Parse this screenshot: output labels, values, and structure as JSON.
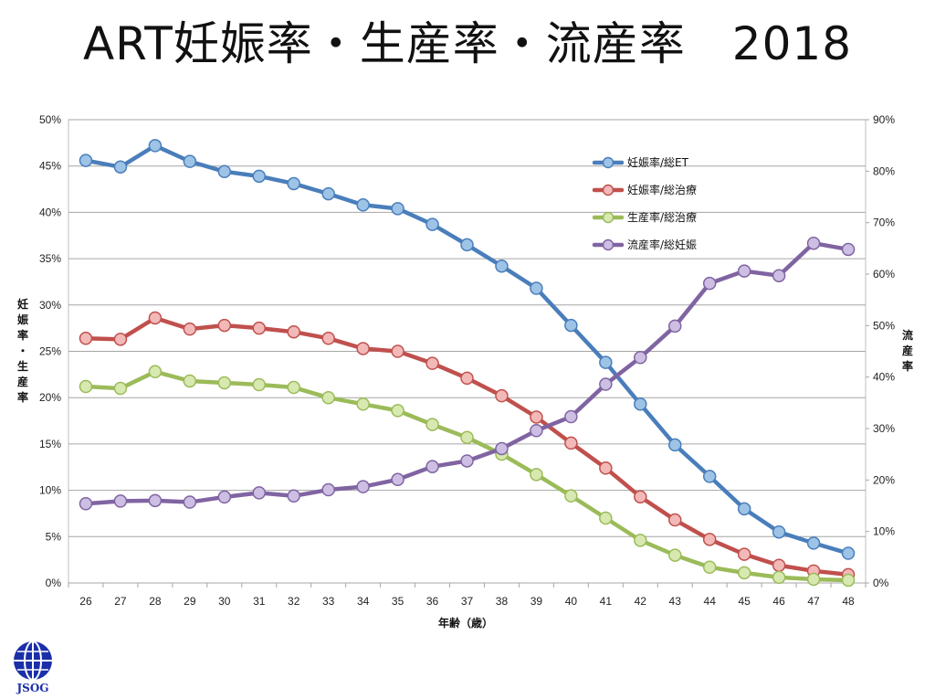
{
  "title": "ART妊娠率・生産率・流産率　2018",
  "logo": {
    "text": "JSOG",
    "color": "#1b2fa8"
  },
  "chart_data": {
    "type": "line",
    "title": "ART妊娠率・生産率・流産率　2018",
    "xlabel": "年齢（歳）",
    "ylabel_left": "妊娠率・生産率",
    "ylabel_right": "流産率",
    "categories": [
      26,
      27,
      28,
      29,
      30,
      31,
      32,
      33,
      34,
      35,
      36,
      37,
      38,
      39,
      40,
      41,
      42,
      43,
      44,
      45,
      46,
      47,
      48
    ],
    "left_axis": {
      "min": 0,
      "max": 50,
      "step": 5,
      "unit": "%",
      "ticks": [
        "0%",
        "5%",
        "10%",
        "15%",
        "20%",
        "25%",
        "30%",
        "35%",
        "40%",
        "45%",
        "50%"
      ]
    },
    "right_axis": {
      "min": 0,
      "max": 90,
      "step": 10,
      "unit": "%",
      "ticks": [
        "0%",
        "10%",
        "20%",
        "30%",
        "40%",
        "50%",
        "60%",
        "70%",
        "80%",
        "90%"
      ]
    },
    "grid": true,
    "legend_position": "top-right",
    "series": [
      {
        "name": "妊娠率/総ET",
        "axis": "left",
        "color": "#4a7ebb",
        "marker_fill": "#9dc3e6",
        "values": [
          45.6,
          44.9,
          47.2,
          45.5,
          44.4,
          43.9,
          43.1,
          42.0,
          40.8,
          40.4,
          38.7,
          36.5,
          34.2,
          31.8,
          27.8,
          23.8,
          19.3,
          14.9,
          11.5,
          8.0,
          5.5,
          4.3,
          3.2
        ]
      },
      {
        "name": "妊娠率/総治療",
        "axis": "left",
        "color": "#c0504d",
        "marker_fill": "#f2b9b8",
        "values": [
          26.4,
          26.3,
          28.6,
          27.4,
          27.8,
          27.5,
          27.1,
          26.4,
          25.3,
          25.0,
          23.7,
          22.1,
          20.2,
          17.9,
          15.1,
          12.4,
          9.3,
          6.8,
          4.7,
          3.1,
          1.9,
          1.3,
          0.9
        ]
      },
      {
        "name": "生産率/総治療",
        "axis": "left",
        "color": "#9bbb59",
        "marker_fill": "#d7e9b0",
        "values": [
          21.2,
          21.0,
          22.8,
          21.8,
          21.6,
          21.4,
          21.1,
          20.0,
          19.3,
          18.6,
          17.1,
          15.7,
          13.9,
          11.7,
          9.4,
          7.0,
          4.6,
          3.0,
          1.7,
          1.1,
          0.6,
          0.4,
          0.3
        ]
      },
      {
        "name": "流産率/総妊娠",
        "axis": "right",
        "color": "#8064a2",
        "marker_fill": "#cdbfe3",
        "values": [
          15.4,
          15.9,
          16.0,
          15.7,
          16.7,
          17.5,
          16.9,
          18.1,
          18.7,
          20.1,
          22.6,
          23.7,
          26.1,
          29.6,
          32.3,
          38.6,
          43.8,
          49.9,
          58.2,
          60.6,
          59.7,
          66.0,
          64.8
        ]
      }
    ]
  }
}
